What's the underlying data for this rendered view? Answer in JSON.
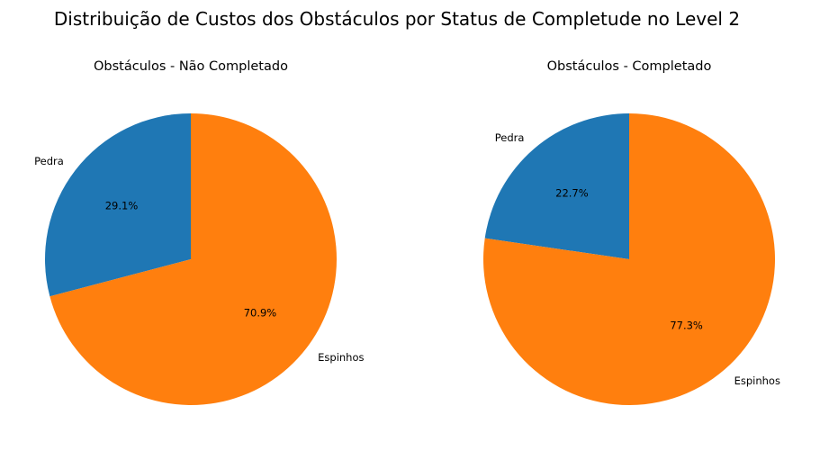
{
  "figure": {
    "title": "Distribuição de Custos dos Obstáculos por Status de Completude no Level 2"
  },
  "chart_data": [
    {
      "type": "pie",
      "title": "Obstáculos - Não Completado",
      "labels": [
        "Pedra",
        "Espinhos"
      ],
      "values": [
        29.1,
        70.9
      ],
      "value_labels": [
        "29.1%",
        "70.9%"
      ],
      "colors": [
        "#1f77b4",
        "#ff7f0e"
      ],
      "start_angle_deg": 90,
      "direction": "counterclockwise"
    },
    {
      "type": "pie",
      "title": "Obstáculos - Completado",
      "labels": [
        "Pedra",
        "Espinhos"
      ],
      "values": [
        22.7,
        77.3
      ],
      "value_labels": [
        "22.7%",
        "77.3%"
      ],
      "colors": [
        "#1f77b4",
        "#ff7f0e"
      ],
      "start_angle_deg": 90,
      "direction": "counterclockwise"
    }
  ]
}
